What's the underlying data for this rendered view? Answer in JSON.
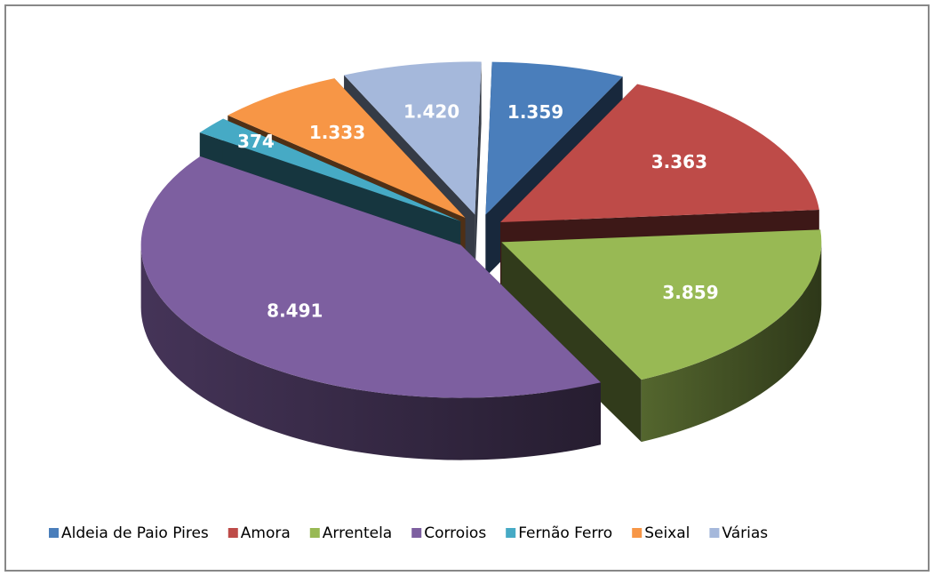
{
  "chart_data": {
    "type": "pie",
    "three_d": true,
    "exploded": true,
    "categories": [
      "Aldeia de Paio Pires",
      "Amora",
      "Arrentela",
      "Corroios",
      "Fernão Ferro",
      "Seixal",
      "Várias"
    ],
    "values": [
      1359,
      3363,
      3859,
      8491,
      374,
      1333,
      1420
    ],
    "value_labels": [
      "1.359",
      "3.363",
      "3.859",
      "8.491",
      "374",
      "1.333",
      "1.420"
    ],
    "colors": [
      "#4a7ebb",
      "#be4b48",
      "#98b954",
      "#7d5fa0",
      "#46aac5",
      "#f79646",
      "#a5b8db"
    ],
    "legend": "bottom"
  }
}
